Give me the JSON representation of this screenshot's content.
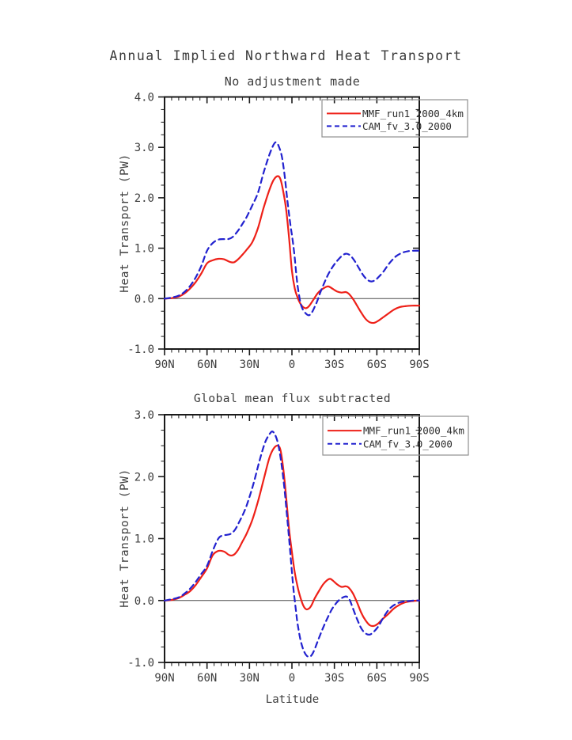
{
  "page": {
    "title": "Annual Implied Northward Heat Transport"
  },
  "colors": {
    "mmf_red": "#ee2018",
    "cam_blue": "#2222cf",
    "axis": "#1a1a1a",
    "text": "#3d3d3d",
    "zero_line": "#4d4d4d",
    "legend_border": "#8f8f8f"
  },
  "chart_data": [
    {
      "type": "line",
      "title": "No adjustment made",
      "ylabel": "Heat Transport (PW)",
      "xlabel": "",
      "xlim": [
        90,
        -90
      ],
      "ylim": [
        -1.0,
        4.0
      ],
      "grid": false,
      "zero_line": true,
      "xticks": {
        "values": [
          90,
          60,
          30,
          0,
          -30,
          -60,
          -90
        ],
        "labels": [
          "90N",
          "60N",
          "30N",
          "0",
          "30S",
          "60S",
          "90S"
        ],
        "minor_step": 5
      },
      "yticks": {
        "values": [
          4.0,
          3.0,
          2.0,
          1.0,
          0.0,
          -1.0
        ],
        "labels": [
          "4.0",
          "3.0",
          "2.0",
          "1.0",
          "0.0",
          "-1.0"
        ],
        "minor_step": 0.25
      },
      "legend": {
        "position": "top-right",
        "entries": [
          {
            "label": "MMF_run1_2000_4km",
            "color": "#ee2018",
            "style": "solid"
          },
          {
            "label": "CAM_fv_3.0_2000",
            "color": "#2222cf",
            "style": "dashed"
          }
        ]
      },
      "series": [
        {
          "name": "MMF_run1_2000_4km",
          "color": "#ee2018",
          "style": "solid",
          "points": [
            [
              90,
              0
            ],
            [
              85,
              0.01
            ],
            [
              80,
              0.04
            ],
            [
              76,
              0.1
            ],
            [
              72,
              0.2
            ],
            [
              68,
              0.33
            ],
            [
              64,
              0.5
            ],
            [
              60,
              0.7
            ],
            [
              56,
              0.76
            ],
            [
              52,
              0.79
            ],
            [
              48,
              0.78
            ],
            [
              44,
              0.73
            ],
            [
              41,
              0.72
            ],
            [
              38,
              0.78
            ],
            [
              35,
              0.87
            ],
            [
              32,
              0.97
            ],
            [
              28,
              1.12
            ],
            [
              24,
              1.4
            ],
            [
              20,
              1.8
            ],
            [
              16,
              2.15
            ],
            [
              13,
              2.35
            ],
            [
              10,
              2.43
            ],
            [
              8,
              2.36
            ],
            [
              6,
              2.1
            ],
            [
              4,
              1.75
            ],
            [
              2,
              1.2
            ],
            [
              0,
              0.55
            ],
            [
              -2,
              0.2
            ],
            [
              -4,
              0.02
            ],
            [
              -6,
              -0.1
            ],
            [
              -8,
              -0.17
            ],
            [
              -10,
              -0.19
            ],
            [
              -12,
              -0.15
            ],
            [
              -15,
              -0.03
            ],
            [
              -18,
              0.1
            ],
            [
              -21,
              0.18
            ],
            [
              -24,
              0.23
            ],
            [
              -26,
              0.24
            ],
            [
              -29,
              0.19
            ],
            [
              -32,
              0.14
            ],
            [
              -35,
              0.12
            ],
            [
              -38,
              0.13
            ],
            [
              -40,
              0.1
            ],
            [
              -43,
              0
            ],
            [
              -46,
              -0.14
            ],
            [
              -49,
              -0.28
            ],
            [
              -52,
              -0.4
            ],
            [
              -55,
              -0.47
            ],
            [
              -58,
              -0.48
            ],
            [
              -61,
              -0.44
            ],
            [
              -64,
              -0.38
            ],
            [
              -68,
              -0.3
            ],
            [
              -72,
              -0.22
            ],
            [
              -76,
              -0.17
            ],
            [
              -80,
              -0.15
            ],
            [
              -85,
              -0.14
            ],
            [
              -90,
              -0.14
            ]
          ]
        },
        {
          "name": "CAM_fv_3.0_2000",
          "color": "#2222cf",
          "style": "dashed",
          "points": [
            [
              90,
              0
            ],
            [
              85,
              0.02
            ],
            [
              80,
              0.06
            ],
            [
              76,
              0.13
            ],
            [
              72,
              0.25
            ],
            [
              68,
              0.42
            ],
            [
              64,
              0.65
            ],
            [
              60,
              0.95
            ],
            [
              56,
              1.1
            ],
            [
              52,
              1.17
            ],
            [
              48,
              1.18
            ],
            [
              45,
              1.18
            ],
            [
              42,
              1.22
            ],
            [
              38,
              1.35
            ],
            [
              35,
              1.48
            ],
            [
              32,
              1.62
            ],
            [
              28,
              1.85
            ],
            [
              24,
              2.1
            ],
            [
              20,
              2.5
            ],
            [
              16,
              2.85
            ],
            [
              13,
              3.05
            ],
            [
              11,
              3.1
            ],
            [
              9,
              3.0
            ],
            [
              7,
              2.8
            ],
            [
              5,
              2.4
            ],
            [
              3,
              1.9
            ],
            [
              1,
              1.45
            ],
            [
              0,
              1.26
            ],
            [
              -1,
              1.05
            ],
            [
              -2,
              0.8
            ],
            [
              -3,
              0.5
            ],
            [
              -4,
              0.25
            ],
            [
              -5,
              0.08
            ],
            [
              -6,
              -0.08
            ],
            [
              -7,
              -0.17
            ],
            [
              -8,
              -0.23
            ],
            [
              -10,
              -0.3
            ],
            [
              -12,
              -0.33
            ],
            [
              -14,
              -0.28
            ],
            [
              -16,
              -0.17
            ],
            [
              -18,
              -0.04
            ],
            [
              -20,
              0.12
            ],
            [
              -23,
              0.32
            ],
            [
              -26,
              0.5
            ],
            [
              -29,
              0.64
            ],
            [
              -32,
              0.75
            ],
            [
              -35,
              0.84
            ],
            [
              -38,
              0.89
            ],
            [
              -41,
              0.86
            ],
            [
              -44,
              0.76
            ],
            [
              -47,
              0.62
            ],
            [
              -50,
              0.48
            ],
            [
              -53,
              0.38
            ],
            [
              -56,
              0.34
            ],
            [
              -59,
              0.37
            ],
            [
              -62,
              0.45
            ],
            [
              -65,
              0.55
            ],
            [
              -68,
              0.67
            ],
            [
              -71,
              0.77
            ],
            [
              -74,
              0.85
            ],
            [
              -78,
              0.91
            ],
            [
              -82,
              0.94
            ],
            [
              -86,
              0.95
            ],
            [
              -90,
              0.95
            ]
          ]
        }
      ]
    },
    {
      "type": "line",
      "title": "Global mean flux subtracted",
      "ylabel": "Heat Transport (PW)",
      "xlabel": "Latitude",
      "xlim": [
        90,
        -90
      ],
      "ylim": [
        -1.0,
        3.0
      ],
      "grid": false,
      "zero_line": true,
      "xticks": {
        "values": [
          90,
          60,
          30,
          0,
          -30,
          -60,
          -90
        ],
        "labels": [
          "90N",
          "60N",
          "30N",
          "0",
          "30S",
          "60S",
          "90S"
        ],
        "minor_step": 5
      },
      "yticks": {
        "values": [
          3.0,
          2.0,
          1.0,
          0.0,
          -1.0
        ],
        "labels": [
          "3.0",
          "2.0",
          "1.0",
          "0.0",
          "-1.0"
        ],
        "minor_step": 0.25
      },
      "legend": {
        "position": "top-right",
        "entries": [
          {
            "label": "MMF_run1_2000_4km",
            "color": "#ee2018",
            "style": "solid"
          },
          {
            "label": "CAM_fv_3.0_2000",
            "color": "#2222cf",
            "style": "dashed"
          }
        ]
      },
      "series": [
        {
          "name": "MMF_run1_2000_4km",
          "color": "#ee2018",
          "style": "solid",
          "points": [
            [
              90,
              0
            ],
            [
              85,
              0.01
            ],
            [
              80,
              0.04
            ],
            [
              76,
              0.09
            ],
            [
              72,
              0.15
            ],
            [
              68,
              0.25
            ],
            [
              64,
              0.38
            ],
            [
              60,
              0.52
            ],
            [
              56,
              0.73
            ],
            [
              52,
              0.8
            ],
            [
              48,
              0.79
            ],
            [
              44,
              0.73
            ],
            [
              41,
              0.74
            ],
            [
              38,
              0.82
            ],
            [
              35,
              0.95
            ],
            [
              32,
              1.08
            ],
            [
              28,
              1.3
            ],
            [
              24,
              1.6
            ],
            [
              20,
              1.95
            ],
            [
              16,
              2.3
            ],
            [
              13,
              2.45
            ],
            [
              10,
              2.5
            ],
            [
              8,
              2.42
            ],
            [
              6,
              2.1
            ],
            [
              4,
              1.65
            ],
            [
              2,
              1.15
            ],
            [
              0,
              0.78
            ],
            [
              -2,
              0.45
            ],
            [
              -4,
              0.22
            ],
            [
              -6,
              0.05
            ],
            [
              -8,
              -0.08
            ],
            [
              -10,
              -0.14
            ],
            [
              -12,
              -0.13
            ],
            [
              -14,
              -0.07
            ],
            [
              -16,
              0.03
            ],
            [
              -19,
              0.15
            ],
            [
              -22,
              0.26
            ],
            [
              -25,
              0.33
            ],
            [
              -27,
              0.35
            ],
            [
              -29,
              0.32
            ],
            [
              -32,
              0.26
            ],
            [
              -35,
              0.22
            ],
            [
              -38,
              0.23
            ],
            [
              -40,
              0.21
            ],
            [
              -43,
              0.12
            ],
            [
              -46,
              -0.03
            ],
            [
              -49,
              -0.2
            ],
            [
              -52,
              -0.32
            ],
            [
              -55,
              -0.4
            ],
            [
              -58,
              -0.41
            ],
            [
              -61,
              -0.37
            ],
            [
              -64,
              -0.3
            ],
            [
              -68,
              -0.22
            ],
            [
              -72,
              -0.13
            ],
            [
              -76,
              -0.07
            ],
            [
              -80,
              -0.03
            ],
            [
              -85,
              -0.01
            ],
            [
              -90,
              0
            ]
          ]
        },
        {
          "name": "CAM_fv_3.0_2000",
          "color": "#2222cf",
          "style": "dashed",
          "points": [
            [
              90,
              0
            ],
            [
              85,
              0.02
            ],
            [
              80,
              0.05
            ],
            [
              76,
              0.11
            ],
            [
              72,
              0.19
            ],
            [
              68,
              0.3
            ],
            [
              64,
              0.43
            ],
            [
              60,
              0.56
            ],
            [
              56,
              0.8
            ],
            [
              52,
              1.0
            ],
            [
              49,
              1.05
            ],
            [
              46,
              1.06
            ],
            [
              43,
              1.08
            ],
            [
              40,
              1.15
            ],
            [
              37,
              1.28
            ],
            [
              34,
              1.42
            ],
            [
              31,
              1.6
            ],
            [
              27,
              1.9
            ],
            [
              23,
              2.25
            ],
            [
              19,
              2.55
            ],
            [
              16,
              2.68
            ],
            [
              14,
              2.73
            ],
            [
              12,
              2.68
            ],
            [
              10,
              2.55
            ],
            [
              8,
              2.3
            ],
            [
              6,
              1.95
            ],
            [
              4,
              1.5
            ],
            [
              2,
              1.0
            ],
            [
              0,
              0.46
            ],
            [
              -1,
              0.2
            ],
            [
              -2,
              0.0
            ],
            [
              -3,
              -0.2
            ],
            [
              -4,
              -0.38
            ],
            [
              -6,
              -0.63
            ],
            [
              -8,
              -0.79
            ],
            [
              -10,
              -0.88
            ],
            [
              -12,
              -0.91
            ],
            [
              -14,
              -0.88
            ],
            [
              -16,
              -0.79
            ],
            [
              -19,
              -0.61
            ],
            [
              -22,
              -0.44
            ],
            [
              -25,
              -0.29
            ],
            [
              -28,
              -0.15
            ],
            [
              -31,
              -0.05
            ],
            [
              -34,
              0.02
            ],
            [
              -37,
              0.06
            ],
            [
              -39,
              0.06
            ],
            [
              -41,
              0.0
            ],
            [
              -43,
              -0.12
            ],
            [
              -46,
              -0.3
            ],
            [
              -49,
              -0.45
            ],
            [
              -52,
              -0.53
            ],
            [
              -55,
              -0.55
            ],
            [
              -58,
              -0.5
            ],
            [
              -61,
              -0.42
            ],
            [
              -64,
              -0.3
            ],
            [
              -67,
              -0.19
            ],
            [
              -70,
              -0.11
            ],
            [
              -74,
              -0.05
            ],
            [
              -78,
              -0.02
            ],
            [
              -82,
              -0.01
            ],
            [
              -86,
              0
            ],
            [
              -90,
              0
            ]
          ]
        }
      ]
    }
  ]
}
